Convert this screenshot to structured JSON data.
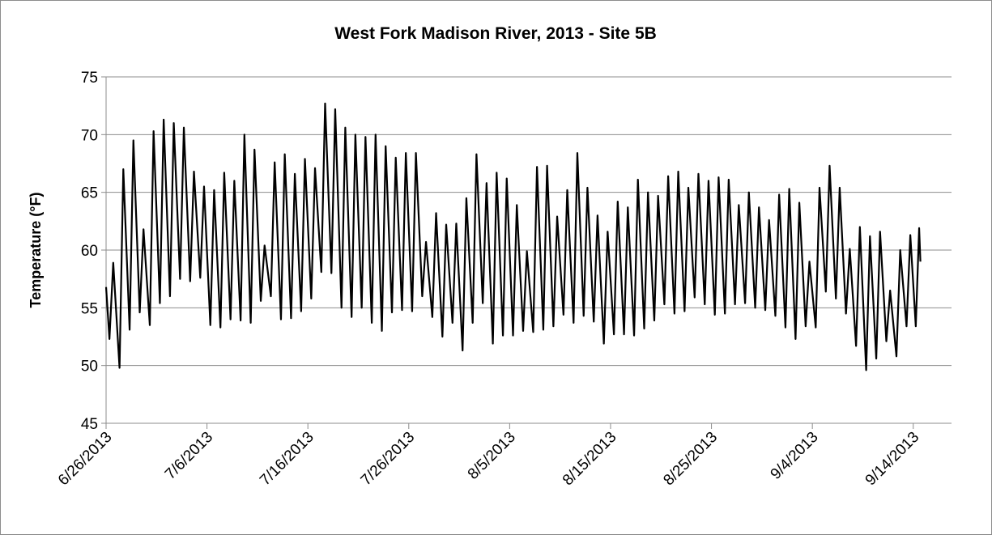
{
  "chart_data": {
    "type": "line",
    "title": "West Fork Madison River, 2013 - Site 5B",
    "y_label": "Temperature (°F)",
    "color": "#000000",
    "grid": true,
    "ylim": [
      45,
      75
    ],
    "yticks": [
      45,
      50,
      55,
      60,
      65,
      70,
      75
    ],
    "xlim": [
      "2013-06-26T00:00",
      "2013-09-17T19:00"
    ],
    "xticks": [
      {
        "value": "2013-06-26T00:00",
        "label": "6/26/2013"
      },
      {
        "value": "2013-07-06T00:00",
        "label": "7/6/2013"
      },
      {
        "value": "2013-07-16T00:00",
        "label": "7/16/2013"
      },
      {
        "value": "2013-07-26T00:00",
        "label": "7/26/2013"
      },
      {
        "value": "2013-08-05T00:00",
        "label": "8/5/2013"
      },
      {
        "value": "2013-08-15T00:00",
        "label": "8/15/2013"
      },
      {
        "value": "2013-08-25T00:00",
        "label": "8/25/2013"
      },
      {
        "value": "2013-09-04T00:00",
        "label": "9/4/2013"
      },
      {
        "value": "2013-09-14T00:00",
        "label": "9/14/2013"
      }
    ],
    "x": [
      "2013-06-26T00:00",
      "2013-06-26T08:00",
      "2013-06-26T17:00",
      "2013-06-27T08:00",
      "2013-06-27T17:00",
      "2013-06-28T08:00",
      "2013-06-28T17:00",
      "2013-06-29T08:00",
      "2013-06-29T17:00",
      "2013-06-30T08:00",
      "2013-06-30T17:00",
      "2013-07-01T08:00",
      "2013-07-01T17:00",
      "2013-07-02T08:00",
      "2013-07-02T17:00",
      "2013-07-03T08:00",
      "2013-07-03T17:00",
      "2013-07-04T08:00",
      "2013-07-04T17:00",
      "2013-07-05T08:00",
      "2013-07-05T17:00",
      "2013-07-06T08:00",
      "2013-07-06T17:00",
      "2013-07-07T08:00",
      "2013-07-07T17:00",
      "2013-07-08T08:00",
      "2013-07-08T17:00",
      "2013-07-09T08:00",
      "2013-07-09T17:00",
      "2013-07-10T08:00",
      "2013-07-10T17:00",
      "2013-07-11T08:00",
      "2013-07-11T17:00",
      "2013-07-12T08:00",
      "2013-07-12T17:00",
      "2013-07-13T08:00",
      "2013-07-13T17:00",
      "2013-07-14T08:00",
      "2013-07-14T17:00",
      "2013-07-15T08:00",
      "2013-07-15T17:00",
      "2013-07-16T08:00",
      "2013-07-16T17:00",
      "2013-07-17T08:00",
      "2013-07-17T17:00",
      "2013-07-18T08:00",
      "2013-07-18T17:00",
      "2013-07-19T08:00",
      "2013-07-19T17:00",
      "2013-07-20T08:00",
      "2013-07-20T17:00",
      "2013-07-21T08:00",
      "2013-07-21T17:00",
      "2013-07-22T08:00",
      "2013-07-22T17:00",
      "2013-07-23T08:00",
      "2013-07-23T17:00",
      "2013-07-24T08:00",
      "2013-07-24T17:00",
      "2013-07-25T08:00",
      "2013-07-25T17:00",
      "2013-07-26T08:00",
      "2013-07-26T17:00",
      "2013-07-27T08:00",
      "2013-07-27T17:00",
      "2013-07-28T08:00",
      "2013-07-28T17:00",
      "2013-07-29T08:00",
      "2013-07-29T17:00",
      "2013-07-30T08:00",
      "2013-07-30T17:00",
      "2013-07-31T08:00",
      "2013-07-31T17:00",
      "2013-08-01T08:00",
      "2013-08-01T17:00",
      "2013-08-02T08:00",
      "2013-08-02T17:00",
      "2013-08-03T08:00",
      "2013-08-03T17:00",
      "2013-08-04T08:00",
      "2013-08-04T17:00",
      "2013-08-05T08:00",
      "2013-08-05T17:00",
      "2013-08-06T08:00",
      "2013-08-06T17:00",
      "2013-08-07T08:00",
      "2013-08-07T17:00",
      "2013-08-08T08:00",
      "2013-08-08T17:00",
      "2013-08-09T08:00",
      "2013-08-09T17:00",
      "2013-08-10T08:00",
      "2013-08-10T17:00",
      "2013-08-11T08:00",
      "2013-08-11T17:00",
      "2013-08-12T08:00",
      "2013-08-12T17:00",
      "2013-08-13T08:00",
      "2013-08-13T17:00",
      "2013-08-14T08:00",
      "2013-08-14T17:00",
      "2013-08-15T08:00",
      "2013-08-15T17:00",
      "2013-08-16T08:00",
      "2013-08-16T17:00",
      "2013-08-17T08:00",
      "2013-08-17T17:00",
      "2013-08-18T08:00",
      "2013-08-18T17:00",
      "2013-08-19T08:00",
      "2013-08-19T17:00",
      "2013-08-20T08:00",
      "2013-08-20T17:00",
      "2013-08-21T08:00",
      "2013-08-21T17:00",
      "2013-08-22T08:00",
      "2013-08-22T17:00",
      "2013-08-23T08:00",
      "2013-08-23T17:00",
      "2013-08-24T08:00",
      "2013-08-24T17:00",
      "2013-08-25T08:00",
      "2013-08-25T17:00",
      "2013-08-26T08:00",
      "2013-08-26T17:00",
      "2013-08-27T08:00",
      "2013-08-27T17:00",
      "2013-08-28T08:00",
      "2013-08-28T17:00",
      "2013-08-29T08:00",
      "2013-08-29T17:00",
      "2013-08-30T08:00",
      "2013-08-30T17:00",
      "2013-08-31T08:00",
      "2013-08-31T17:00",
      "2013-09-01T08:00",
      "2013-09-01T17:00",
      "2013-09-02T08:00",
      "2013-09-02T17:00",
      "2013-09-03T08:00",
      "2013-09-03T17:00",
      "2013-09-04T08:00",
      "2013-09-04T17:00",
      "2013-09-05T08:00",
      "2013-09-05T17:00",
      "2013-09-06T08:00",
      "2013-09-06T17:00",
      "2013-09-07T08:00",
      "2013-09-07T17:00",
      "2013-09-08T08:00",
      "2013-09-08T17:00",
      "2013-09-09T08:00",
      "2013-09-09T17:00",
      "2013-09-10T08:00",
      "2013-09-10T17:00",
      "2013-09-11T08:00",
      "2013-09-11T17:00",
      "2013-09-12T08:00",
      "2013-09-12T17:00",
      "2013-09-13T08:00",
      "2013-09-13T17:00",
      "2013-09-14T06:00",
      "2013-09-14T14:00",
      "2013-09-14T17:00"
    ],
    "values": [
      56.8,
      52.3,
      58.9,
      49.8,
      67.0,
      53.1,
      69.5,
      54.6,
      61.8,
      53.5,
      70.3,
      55.4,
      71.3,
      56.0,
      71.0,
      57.5,
      70.6,
      57.3,
      66.8,
      57.6,
      65.5,
      53.5,
      65.2,
      53.3,
      66.7,
      54.0,
      66.0,
      53.9,
      70.0,
      53.7,
      68.7,
      55.6,
      60.4,
      56.0,
      67.6,
      54.0,
      68.3,
      54.1,
      66.6,
      54.7,
      67.9,
      55.8,
      67.1,
      58.1,
      72.7,
      58.0,
      72.2,
      55.0,
      70.6,
      54.2,
      70.0,
      55.0,
      69.8,
      53.7,
      70.0,
      53.0,
      69.0,
      54.6,
      68.0,
      54.8,
      68.4,
      54.7,
      68.4,
      56.0,
      60.7,
      54.2,
      63.2,
      52.5,
      62.2,
      53.7,
      62.3,
      51.3,
      64.5,
      53.7,
      68.3,
      55.4,
      65.8,
      51.9,
      66.7,
      52.6,
      66.2,
      52.6,
      63.9,
      53.0,
      59.9,
      52.9,
      67.2,
      53.1,
      67.3,
      53.4,
      62.9,
      54.4,
      65.2,
      53.7,
      68.4,
      54.3,
      65.4,
      53.8,
      63.0,
      51.9,
      61.6,
      52.7,
      64.2,
      52.7,
      63.7,
      52.6,
      66.1,
      53.2,
      65.0,
      53.9,
      64.7,
      55.3,
      66.4,
      54.5,
      66.8,
      54.7,
      65.4,
      55.9,
      66.6,
      55.3,
      66.0,
      54.4,
      66.3,
      54.5,
      66.1,
      55.3,
      63.9,
      55.4,
      65.0,
      55.0,
      63.7,
      54.8,
      62.6,
      54.3,
      64.8,
      53.3,
      65.3,
      52.3,
      64.1,
      53.4,
      59.0,
      53.3,
      65.4,
      56.4,
      67.3,
      55.8,
      65.4,
      54.5,
      60.1,
      51.7,
      62.0,
      49.6,
      61.2,
      50.6,
      61.6,
      52.1,
      56.5,
      50.8,
      60.0,
      53.4,
      61.3,
      53.4,
      61.9,
      59.0
    ]
  }
}
